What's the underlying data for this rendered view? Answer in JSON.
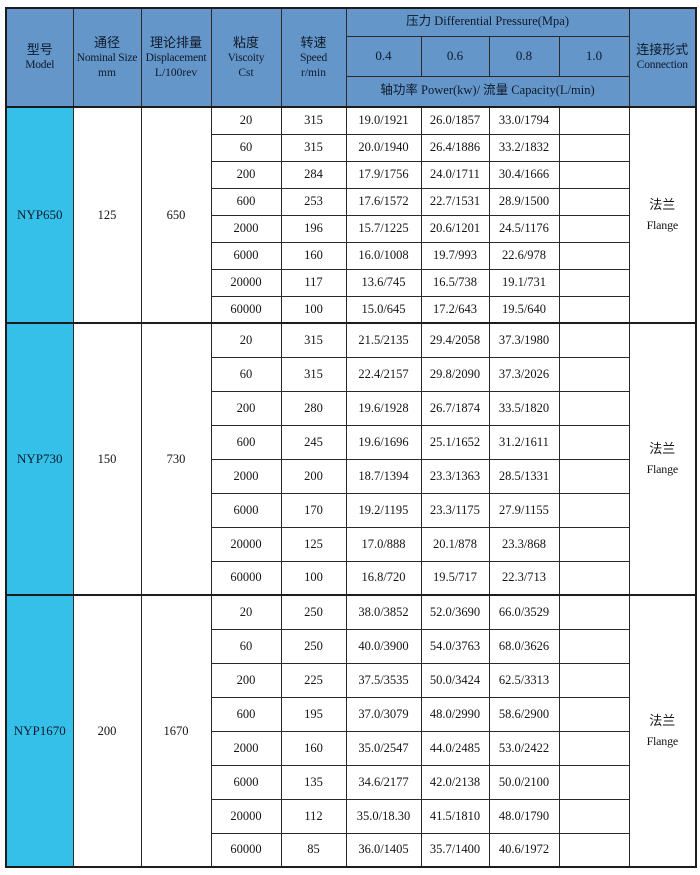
{
  "colors": {
    "header_bg": "#6496c9",
    "model_bg": "#35c0ea",
    "border": "#1c1c1c",
    "text": "#141414"
  },
  "table": {
    "header": {
      "model_zh": "型号",
      "model_en": "Model",
      "nominal_zh": "通径",
      "nominal_en": "Nominal Size",
      "nominal_unit": "mm",
      "disp_zh": "理论排量",
      "disp_en": "Displacement",
      "disp_unit": "L/100rev",
      "visc_zh": "粘度",
      "visc_en": "Viscoity",
      "visc_unit": "Cst",
      "speed_zh": "转速",
      "speed_en": "Speed",
      "speed_unit": "r/min",
      "pressure_label": "压力 Differential Pressure(Mpa)",
      "pressure_values": [
        "0.4",
        "0.6",
        "0.8",
        "1.0"
      ],
      "power_capacity_label": "轴功率 Power(kw)/ 流量 Capacity(L/min)",
      "connection_zh": "连接形式",
      "connection_en": "Connection"
    },
    "models": [
      {
        "model": "NYP650",
        "nominal_size": "125",
        "displacement": "650",
        "connection_zh": "法兰",
        "connection_en": "Flange",
        "rows": [
          {
            "viscosity": "20",
            "speed": "315",
            "p": [
              "19.0/1921",
              "26.0/1857",
              "33.0/1794",
              ""
            ]
          },
          {
            "viscosity": "60",
            "speed": "315",
            "p": [
              "20.0/1940",
              "26.4/1886",
              "33.2/1832",
              ""
            ]
          },
          {
            "viscosity": "200",
            "speed": "284",
            "p": [
              "17.9/1756",
              "24.0/1711",
              "30.4/1666",
              ""
            ]
          },
          {
            "viscosity": "600",
            "speed": "253",
            "p": [
              "17.6/1572",
              "22.7/1531",
              "28.9/1500",
              ""
            ]
          },
          {
            "viscosity": "2000",
            "speed": "196",
            "p": [
              "15.7/1225",
              "20.6/1201",
              "24.5/1176",
              ""
            ]
          },
          {
            "viscosity": "6000",
            "speed": "160",
            "p": [
              "16.0/1008",
              "19.7/993",
              "22.6/978",
              ""
            ]
          },
          {
            "viscosity": "20000",
            "speed": "117",
            "p": [
              "13.6/745",
              "16.5/738",
              "19.1/731",
              ""
            ]
          },
          {
            "viscosity": "60000",
            "speed": "100",
            "p": [
              "15.0/645",
              "17.2/643",
              "19.5/640",
              ""
            ]
          }
        ]
      },
      {
        "model": "NYP730",
        "nominal_size": "150",
        "displacement": "730",
        "connection_zh": "法兰",
        "connection_en": "Flange",
        "rows": [
          {
            "viscosity": "20",
            "speed": "315",
            "p": [
              "21.5/2135",
              "29.4/2058",
              "37.3/1980",
              ""
            ]
          },
          {
            "viscosity": "60",
            "speed": "315",
            "p": [
              "22.4/2157",
              "29.8/2090",
              "37.3/2026",
              ""
            ]
          },
          {
            "viscosity": "200",
            "speed": "280",
            "p": [
              "19.6/1928",
              "26.7/1874",
              "33.5/1820",
              ""
            ]
          },
          {
            "viscosity": "600",
            "speed": "245",
            "p": [
              "19.6/1696",
              "25.1/1652",
              "31.2/1611",
              ""
            ]
          },
          {
            "viscosity": "2000",
            "speed": "200",
            "p": [
              "18.7/1394",
              "23.3/1363",
              "28.5/1331",
              ""
            ]
          },
          {
            "viscosity": "6000",
            "speed": "170",
            "p": [
              "19.2/1195",
              "23.3/1175",
              "27.9/1155",
              ""
            ]
          },
          {
            "viscosity": "20000",
            "speed": "125",
            "p": [
              "17.0/888",
              "20.1/878",
              "23.3/868",
              ""
            ]
          },
          {
            "viscosity": "60000",
            "speed": "100",
            "p": [
              "16.8/720",
              "19.5/717",
              "22.3/713",
              ""
            ]
          }
        ]
      },
      {
        "model": "NYP1670",
        "nominal_size": "200",
        "displacement": "1670",
        "connection_zh": "法兰",
        "connection_en": "Flange",
        "rows": [
          {
            "viscosity": "20",
            "speed": "250",
            "p": [
              "38.0/3852",
              "52.0/3690",
              "66.0/3529",
              ""
            ]
          },
          {
            "viscosity": "60",
            "speed": "250",
            "p": [
              "40.0/3900",
              "54.0/3763",
              "68.0/3626",
              ""
            ]
          },
          {
            "viscosity": "200",
            "speed": "225",
            "p": [
              "37.5/3535",
              "50.0/3424",
              "62.5/3313",
              ""
            ]
          },
          {
            "viscosity": "600",
            "speed": "195",
            "p": [
              "37.0/3079",
              "48.0/2990",
              "58.6/2900",
              ""
            ]
          },
          {
            "viscosity": "2000",
            "speed": "160",
            "p": [
              "35.0/2547",
              "44.0/2485",
              "53.0/2422",
              ""
            ]
          },
          {
            "viscosity": "6000",
            "speed": "135",
            "p": [
              "34.6/2177",
              "42.0/2138",
              "50.0/2100",
              ""
            ]
          },
          {
            "viscosity": "20000",
            "speed": "112",
            "p": [
              "35.0/18.30",
              "41.5/1810",
              "48.0/1790",
              ""
            ]
          },
          {
            "viscosity": "60000",
            "speed": "85",
            "p": [
              "36.0/1405",
              "35.7/1400",
              "40.6/1972",
              ""
            ]
          }
        ]
      }
    ]
  }
}
